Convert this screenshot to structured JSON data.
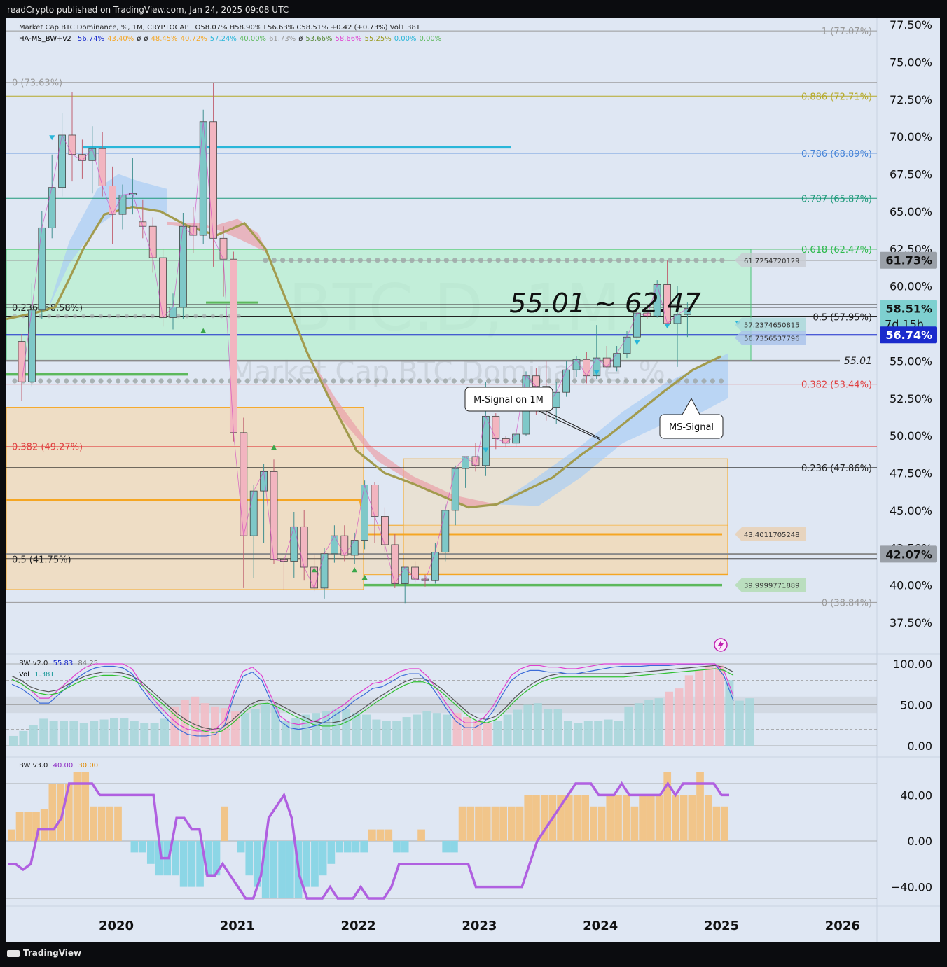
{
  "header": {
    "published": "readCrypto published on TradingView.com, Jan 24, 2025 09:08 UTC"
  },
  "footer": {
    "brand": "TradingView"
  },
  "colors": {
    "background": "#dfe7f3",
    "bull": "#7ec8c8",
    "bear": "#f2b5c0",
    "blue_line": "#1a2bcc",
    "orange": "#f5a623",
    "green": "#5cb85c",
    "cyan": "#29b6d9",
    "pink_cloud": "#e9a0a8",
    "blue_cloud": "#a9cdf3",
    "green_zone": "#b8f0d0",
    "tan_zone": "#f3d9b0"
  },
  "legend": {
    "main": "Market Cap BTC Dominance, %, 1M, CRYPTOCAP",
    "ohlc": "O58.07%  H58.90%  L56.63%  C58.51%  +0.42 (+0.73%)  Vol1.38T",
    "ha_name": "HA-MS_BW+v2",
    "ha_values": [
      {
        "v": "56.74%",
        "c": "#1a2bcc"
      },
      {
        "v": "43.40%",
        "c": "#f5a623"
      },
      {
        "v": "ø",
        "c": "#222"
      },
      {
        "v": "ø",
        "c": "#222"
      },
      {
        "v": "48.45%",
        "c": "#f5a623"
      },
      {
        "v": "40.72%",
        "c": "#f5a623"
      },
      {
        "v": "57.24%",
        "c": "#29b6d9"
      },
      {
        "v": "40.00%",
        "c": "#5cb85c"
      },
      {
        "v": "61.73%",
        "c": "#999"
      },
      {
        "v": "ø",
        "c": "#222"
      },
      {
        "v": "53.66%",
        "c": "#5a8a3a"
      },
      {
        "v": "58.66%",
        "c": "#e040d0"
      },
      {
        "v": "55.25%",
        "c": "#9a9a20"
      },
      {
        "v": "0.00%",
        "c": "#29b6d9"
      },
      {
        "v": "0.00%",
        "c": "#5cb85c"
      }
    ],
    "bw2_name": "BW v2.0",
    "bw2_v1": "55.83",
    "bw2_v2": "84.25",
    "vol_name": "Vol",
    "vol_value": "1.38T",
    "bw3_name": "BW v3.0",
    "bw3_v1": "40.00",
    "bw3_v2": "30.00"
  },
  "watermark": {
    "symbol": "BTC.D, 1M",
    "name": "Market Cap BTC Dominance, %"
  },
  "annotations": {
    "range": "55.01 ~ 62.47",
    "m_signal": "M-Signal on 1M",
    "ms_signal": "MS-Signal",
    "level_5501": "55.01",
    "level_61725": "61.7254720129",
    "level_57237": "57.2374650815",
    "level_56735": "56.7356537796",
    "level_43401": "43.4011705248",
    "level_39999": "39.9999771889"
  },
  "price_labels": {
    "p1": "61.73%",
    "p2": "58.51%",
    "p2_timer": "7d 15h",
    "p3": "56.74%",
    "p4": "42.07%"
  },
  "chart_data": {
    "type": "candlestick",
    "title": "",
    "ylim": [
      36.5,
      77.8
    ],
    "y_ticks": [
      "77.50%",
      "75.00%",
      "72.50%",
      "70.00%",
      "67.50%",
      "65.00%",
      "62.50%",
      "60.00%",
      "57.50%",
      "55.00%",
      "52.50%",
      "50.00%",
      "47.50%",
      "45.00%",
      "42.50%",
      "40.00%",
      "37.50%"
    ],
    "x_ticks": [
      "2020",
      "2021",
      "2022",
      "2023",
      "2024",
      "2025",
      "2026"
    ],
    "fib_right": [
      {
        "label": "1 (77.07%)",
        "v": 77.07,
        "c": "#999999"
      },
      {
        "label": "0.886 (72.71%)",
        "v": 72.71,
        "c": "#b5a92a"
      },
      {
        "label": "0.786 (68.89%)",
        "v": 68.89,
        "c": "#4a86d8"
      },
      {
        "label": "0.707 (65.87%)",
        "v": 65.87,
        "c": "#1e9a7a"
      },
      {
        "label": "0.618 (62.47%)",
        "v": 62.47,
        "c": "#2db94d"
      },
      {
        "label": "0.5 (57.95%)",
        "v": 57.95,
        "c": "#222222"
      },
      {
        "label": "0.382 (53.44%)",
        "v": 53.44,
        "c": "#e04040"
      },
      {
        "label": "0.236 (47.86%)",
        "v": 47.86,
        "c": "#222222"
      },
      {
        "label": "0 (38.84%)",
        "v": 38.84,
        "c": "#999999"
      }
    ],
    "fib_left": [
      {
        "label": "0 (73.63%)",
        "v": 73.63,
        "c": "#999999"
      },
      {
        "label": "0.236 (58.58%)",
        "v": 58.58,
        "c": "#222222"
      },
      {
        "label": "0.382 (49.27%)",
        "v": 49.27,
        "c": "#e04040"
      },
      {
        "label": "0.5 (41.75%)",
        "v": 41.75,
        "c": "#222222"
      }
    ],
    "candles": [
      [
        56.3,
        56.8,
        52.3,
        53.6
      ],
      [
        53.6,
        60.2,
        53.3,
        58.4
      ],
      [
        58.4,
        65.0,
        57.8,
        63.9
      ],
      [
        63.9,
        68.8,
        63.2,
        66.6
      ],
      [
        66.6,
        71.6,
        66.0,
        70.1
      ],
      [
        70.1,
        73.0,
        67.0,
        68.8
      ],
      [
        68.8,
        69.8,
        67.2,
        68.4
      ],
      [
        68.4,
        70.7,
        66.2,
        69.2
      ],
      [
        69.2,
        70.3,
        66.0,
        66.7
      ],
      [
        66.7,
        68.0,
        62.8,
        64.8
      ],
      [
        64.8,
        66.8,
        63.8,
        66.1
      ],
      [
        66.1,
        68.6,
        64.8,
        66.2
      ],
      [
        64.3,
        65.8,
        63.2,
        64.0
      ],
      [
        64.0,
        64.6,
        60.9,
        61.9
      ],
      [
        61.9,
        62.5,
        57.3,
        57.9
      ],
      [
        57.9,
        59.5,
        57.1,
        58.6
      ],
      [
        58.6,
        64.9,
        57.8,
        64.0
      ],
      [
        64.0,
        65.3,
        62.2,
        63.4
      ],
      [
        63.4,
        71.8,
        62.8,
        71.0
      ],
      [
        71.0,
        73.6,
        61.3,
        63.2
      ],
      [
        63.2,
        64.0,
        59.3,
        61.8
      ],
      [
        61.8,
        62.3,
        49.6,
        50.2
      ],
      [
        50.2,
        51.2,
        39.8,
        43.3
      ],
      [
        43.3,
        46.7,
        40.5,
        46.3
      ],
      [
        46.3,
        48.1,
        42.8,
        47.6
      ],
      [
        47.6,
        48.4,
        41.4,
        41.7
      ],
      [
        41.7,
        41.9,
        39.7,
        41.6
      ],
      [
        41.6,
        44.9,
        40.5,
        43.9
      ],
      [
        43.9,
        45.0,
        40.3,
        41.2
      ],
      [
        41.2,
        42.0,
        39.6,
        39.8
      ],
      [
        39.8,
        42.5,
        39.1,
        42.1
      ],
      [
        42.1,
        44.0,
        41.5,
        43.3
      ],
      [
        43.3,
        44.0,
        41.6,
        42.0
      ],
      [
        42.0,
        43.5,
        41.4,
        43.0
      ],
      [
        43.0,
        47.0,
        42.4,
        46.7
      ],
      [
        46.7,
        46.9,
        42.8,
        44.6
      ],
      [
        44.6,
        45.2,
        42.2,
        42.7
      ],
      [
        42.7,
        43.4,
        39.8,
        40.1
      ],
      [
        40.1,
        41.2,
        38.8,
        41.2
      ],
      [
        41.2,
        41.6,
        40.2,
        40.4
      ],
      [
        40.4,
        40.7,
        39.9,
        40.3
      ],
      [
        40.3,
        42.8,
        40.1,
        42.2
      ],
      [
        42.2,
        45.4,
        41.6,
        45.0
      ],
      [
        45.0,
        48.0,
        44.0,
        47.8
      ],
      [
        47.8,
        48.6,
        46.5,
        48.6
      ],
      [
        48.6,
        49.5,
        47.6,
        48.0
      ],
      [
        48.0,
        53.6,
        47.3,
        51.3
      ],
      [
        51.3,
        51.5,
        49.1,
        49.8
      ],
      [
        49.8,
        50.0,
        49.2,
        49.5
      ],
      [
        49.5,
        50.4,
        49.2,
        50.1
      ],
      [
        50.1,
        54.3,
        50.0,
        54.0
      ],
      [
        54.0,
        54.5,
        51.4,
        53.3
      ],
      [
        53.3,
        55.0,
        51.0,
        51.9
      ],
      [
        51.9,
        53.6,
        50.8,
        52.9
      ],
      [
        52.9,
        55.0,
        52.6,
        54.4
      ],
      [
        54.4,
        55.3,
        53.9,
        55.1
      ],
      [
        55.1,
        55.6,
        53.5,
        54.0
      ],
      [
        54.0,
        57.4,
        53.8,
        55.2
      ],
      [
        55.2,
        56.0,
        54.5,
        54.6
      ],
      [
        54.6,
        56.0,
        54.3,
        55.5
      ],
      [
        55.5,
        57.0,
        55.2,
        56.6
      ],
      [
        56.6,
        58.4,
        56.3,
        58.2
      ],
      [
        58.2,
        58.6,
        57.8,
        58.0
      ],
      [
        58.0,
        60.4,
        57.9,
        60.1
      ],
      [
        60.1,
        61.7,
        57.3,
        57.5
      ],
      [
        57.5,
        60.0,
        54.6,
        58.1
      ],
      [
        58.1,
        58.9,
        56.6,
        58.5
      ]
    ],
    "bw2_stoch": [
      75,
      70,
      62,
      52,
      52,
      62,
      72,
      82,
      90,
      95,
      97,
      97,
      95,
      88,
      70,
      55,
      42,
      30,
      20,
      14,
      12,
      12,
      14,
      25,
      60,
      85,
      90,
      80,
      55,
      30,
      22,
      20,
      22,
      25,
      30,
      38,
      45,
      55,
      62,
      70,
      72,
      78,
      85,
      88,
      88,
      78,
      62,
      45,
      30,
      22,
      22,
      28,
      42,
      62,
      80,
      88,
      92,
      92,
      90,
      90,
      88,
      88,
      90,
      92,
      94,
      96,
      97,
      97,
      97,
      98,
      98,
      98,
      99,
      99,
      99,
      100,
      100,
      85,
      55
    ],
    "bw2_signal": [
      85,
      80,
      72,
      68,
      66,
      68,
      74,
      80,
      85,
      88,
      90,
      90,
      89,
      86,
      80,
      70,
      60,
      50,
      40,
      32,
      26,
      22,
      20,
      22,
      30,
      40,
      50,
      55,
      56,
      52,
      46,
      40,
      35,
      30,
      28,
      28,
      30,
      35,
      42,
      50,
      58,
      65,
      72,
      78,
      82,
      82,
      78,
      70,
      60,
      50,
      40,
      34,
      32,
      36,
      46,
      58,
      68,
      76,
      82,
      86,
      88,
      88,
      88,
      88,
      88,
      88,
      88,
      88,
      89,
      90,
      91,
      92,
      93,
      94,
      95,
      96,
      97,
      98,
      96,
      90
    ],
    "bw2_vol": [
      12,
      18,
      25,
      33,
      30,
      30,
      30,
      28,
      30,
      32,
      34,
      34,
      30,
      28,
      28,
      33,
      48,
      56,
      60,
      52,
      48,
      46,
      42,
      40,
      45,
      52,
      48,
      30,
      34,
      38,
      40,
      42,
      44,
      45,
      40,
      38,
      32,
      30,
      30,
      35,
      38,
      42,
      40,
      38,
      40,
      35,
      30,
      28,
      30,
      38,
      44,
      50,
      52,
      45,
      45,
      30,
      28,
      30,
      30,
      32,
      30,
      48,
      52,
      56,
      58,
      66,
      70,
      86,
      92,
      96,
      98,
      80,
      55,
      58
    ],
    "bw3_hist": [
      10,
      25,
      25,
      25,
      28,
      50,
      50,
      50,
      60,
      60,
      30,
      30,
      30,
      30,
      0,
      -10,
      -10,
      -20,
      -30,
      -30,
      -30,
      -40,
      -40,
      -40,
      -30,
      -30,
      30,
      0,
      -10,
      -30,
      -40,
      -50,
      -50,
      -50,
      -50,
      -50,
      -40,
      -40,
      -30,
      -20,
      -10,
      -10,
      -10,
      -10,
      10,
      10,
      10,
      -10,
      -10,
      0,
      10,
      0,
      0,
      -10,
      -10,
      30,
      30,
      30,
      30,
      30,
      30,
      30,
      30,
      40,
      40,
      40,
      40,
      40,
      40,
      40,
      40,
      30,
      30,
      40,
      40,
      40,
      30,
      40,
      40,
      40,
      60,
      40,
      40,
      40,
      60,
      40,
      30,
      30
    ],
    "bw3_line": [
      -20,
      -20,
      -25,
      -20,
      10,
      10,
      10,
      20,
      50,
      50,
      50,
      50,
      40,
      40,
      40,
      40,
      40,
      40,
      40,
      40,
      -15,
      -15,
      20,
      20,
      10,
      10,
      -30,
      -30,
      -20,
      -30,
      -40,
      -50,
      -50,
      -30,
      20,
      30,
      40,
      20,
      -30,
      -50,
      -50,
      -50,
      -40,
      -50,
      -50,
      -50,
      -40,
      -50,
      -50,
      -50,
      -40,
      -20,
      -20,
      -20,
      -20,
      -20,
      -20,
      -20,
      -20,
      -20,
      -20,
      -40,
      -40,
      -40,
      -40,
      -40,
      -40,
      -40,
      -20,
      0,
      10,
      20,
      30,
      40,
      50,
      50,
      50,
      40,
      40,
      40,
      50,
      40,
      40,
      40,
      40,
      40,
      50,
      40,
      50,
      50,
      50,
      50,
      50,
      40,
      40
    ]
  }
}
